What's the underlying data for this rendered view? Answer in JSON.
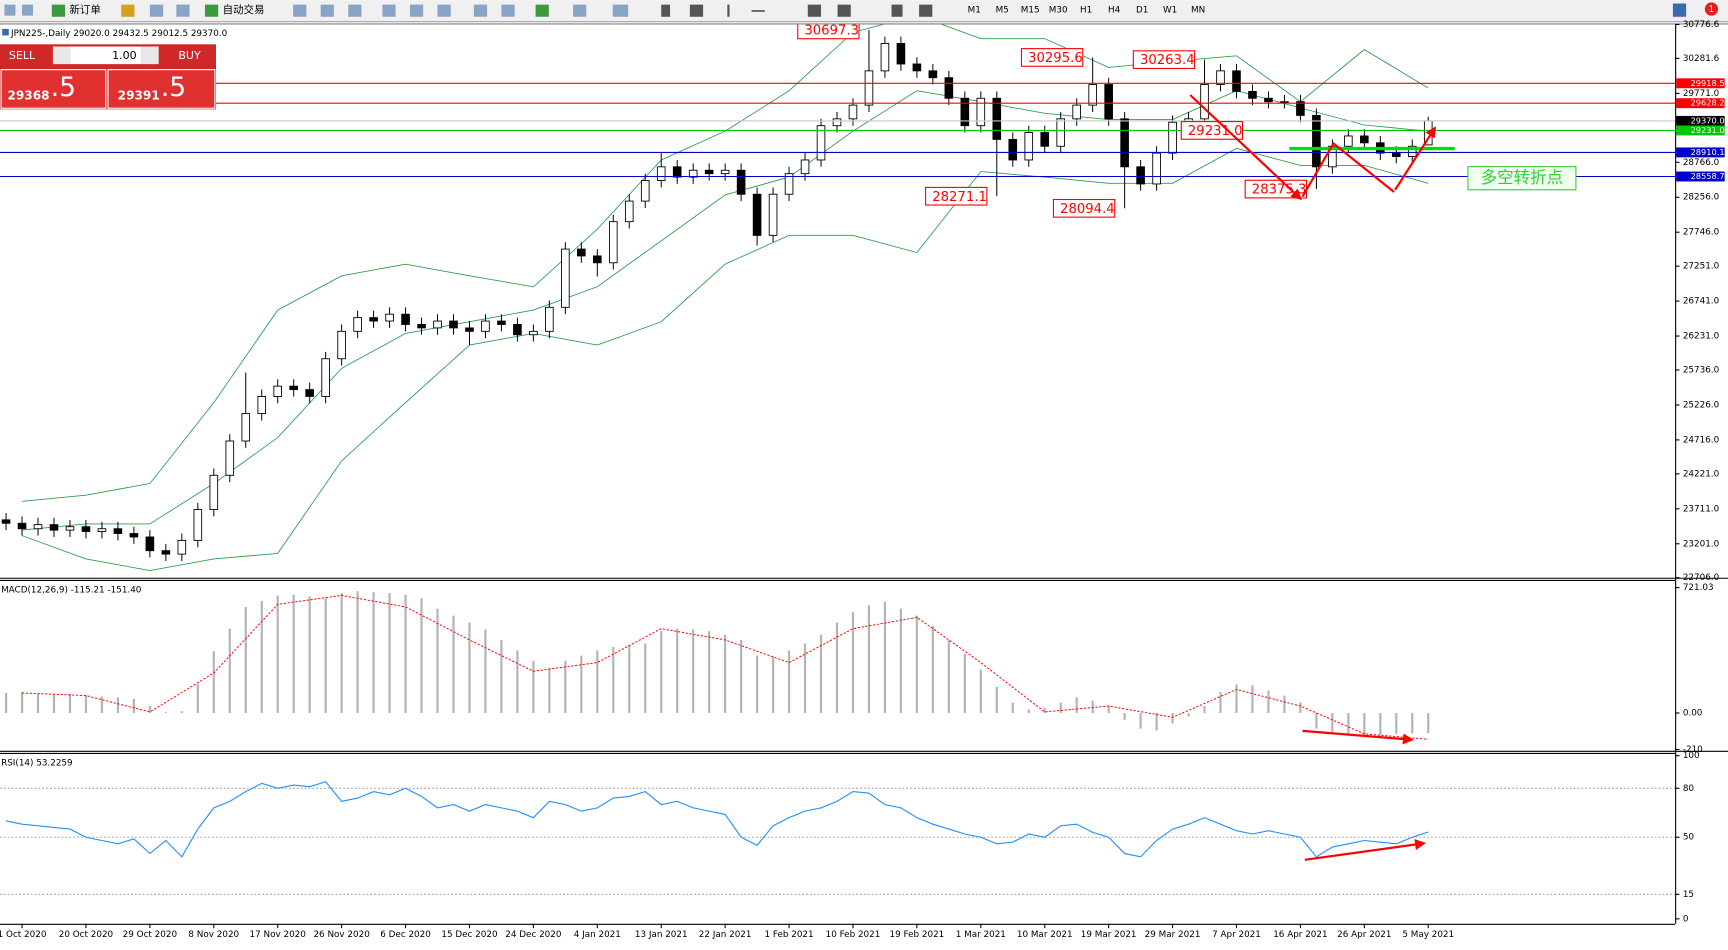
{
  "toolbar": {
    "new_order": "新订单",
    "auto_trading": "自动交易",
    "timeframes": [
      "M1",
      "M5",
      "M15",
      "M30",
      "H1",
      "H4",
      "D1",
      "W1",
      "MN"
    ],
    "badge": "1"
  },
  "trade_panel": {
    "sell": "SELL",
    "buy": "BUY",
    "lot": "1.00",
    "sell_main": "29368",
    "sell_frac": ".5",
    "buy_main": "29391",
    "buy_frac": ".5"
  },
  "chart_data": [
    {
      "type": "candlestick",
      "title": "JPN225-,Daily  29020.0 29432.5 29012.5 29370.0",
      "categories": [
        null,
        "1 Oct 2020",
        null,
        null,
        null,
        "20 Oct 2020",
        null,
        null,
        null,
        "29 Oct 2020",
        null,
        null,
        null,
        "8 Nov 2020",
        null,
        null,
        null,
        "17 Nov 2020",
        null,
        null,
        null,
        "26 Nov 2020",
        null,
        null,
        null,
        "6 Dec 2020",
        null,
        null,
        null,
        "15 Dec 2020",
        null,
        null,
        null,
        "24 Dec 2020",
        null,
        null,
        null,
        "4 Jan 2021",
        null,
        null,
        null,
        "13 Jan 2021",
        null,
        null,
        null,
        "22 Jan 2021",
        null,
        null,
        null,
        "1 Feb 2021",
        null,
        null,
        null,
        "10 Feb 2021",
        null,
        null,
        null,
        "19 Feb 2021",
        null,
        null,
        null,
        "1 Mar 2021",
        null,
        null,
        null,
        "10 Mar 2021",
        null,
        null,
        null,
        "19 Mar 2021",
        null,
        null,
        null,
        "29 Mar 2021",
        null,
        null,
        null,
        "7 Apr 2021",
        null,
        null,
        null,
        "16 Apr 2021",
        null,
        null,
        null,
        "26 Apr 2021",
        null,
        null,
        null,
        "5 May 2021"
      ],
      "open": [
        23550,
        23500,
        23420,
        23480,
        23400,
        23450,
        23380,
        23420,
        23350,
        23300,
        23100,
        23050,
        23250,
        23700,
        24200,
        24700,
        25100,
        25350,
        25500,
        25450,
        25350,
        25900,
        26300,
        26500,
        26450,
        26550,
        26400,
        26350,
        26450,
        26350,
        26300,
        26450,
        26400,
        26250,
        26300,
        26650,
        27500,
        27400,
        27300,
        27900,
        28200,
        28500,
        28700,
        28550,
        28650,
        28600,
        28650,
        28300,
        27700,
        28300,
        28600,
        28800,
        29300,
        29400,
        29600,
        30100,
        30500,
        30200,
        30100,
        30000,
        29700,
        29300,
        29700,
        29100,
        28800,
        29200,
        29000,
        29400,
        29600,
        29900,
        29400,
        28700,
        28450,
        28900,
        29350,
        29400,
        29900,
        30100,
        29800,
        29700,
        29650,
        29650,
        29450,
        28700,
        29000,
        29150,
        29050,
        28900,
        28850,
        29020
      ],
      "high": [
        23650,
        23600,
        23580,
        23580,
        23550,
        23550,
        23520,
        23520,
        23450,
        23400,
        23200,
        23350,
        23800,
        24300,
        24800,
        25700,
        25450,
        25600,
        25600,
        25550,
        26000,
        26400,
        26600,
        26600,
        26650,
        26650,
        26500,
        26550,
        26550,
        26450,
        26550,
        26550,
        26500,
        26400,
        26750,
        27600,
        27600,
        27500,
        28000,
        28300,
        28600,
        28900,
        28800,
        28750,
        28750,
        28750,
        28750,
        28400,
        28400,
        28700,
        28900,
        29400,
        29500,
        29700,
        30697.3,
        30600,
        30600,
        30300,
        30200,
        30100,
        29800,
        29800,
        29800,
        29200,
        29300,
        29300,
        29500,
        29700,
        30295.6,
        30000,
        29500,
        28800,
        29000,
        29450,
        29500,
        30263.4,
        30200,
        30200,
        29900,
        29800,
        29750,
        29750,
        29550,
        29100,
        29250,
        29250,
        29150,
        29000,
        29100,
        29432.5
      ],
      "low": [
        23400,
        23320,
        23320,
        23300,
        23300,
        23280,
        23280,
        23250,
        23200,
        23000,
        22950,
        22950,
        23150,
        23600,
        24100,
        24600,
        25000,
        25250,
        25350,
        25250,
        25250,
        25800,
        26200,
        26350,
        26350,
        26300,
        26250,
        26250,
        26250,
        26100,
        26200,
        26300,
        26150,
        26150,
        26200,
        26550,
        27300,
        27100,
        27200,
        27800,
        28100,
        28400,
        28450,
        28450,
        28500,
        28500,
        28200,
        27550,
        27600,
        28200,
        28500,
        28700,
        29200,
        29300,
        29500,
        30000,
        30100,
        30000,
        29900,
        29600,
        29200,
        29200,
        28271.1,
        28700,
        28700,
        28900,
        28900,
        29300,
        29500,
        29300,
        28094.4,
        28350,
        28350,
        28800,
        29250,
        29300,
        29800,
        29700,
        29600,
        29550,
        29550,
        29350,
        28375.3,
        28600,
        28900,
        28950,
        28800,
        28750,
        28750,
        29012.5
      ],
      "close": [
        23500,
        23420,
        23480,
        23400,
        23450,
        23380,
        23420,
        23350,
        23300,
        23100,
        23050,
        23250,
        23700,
        24200,
        24700,
        25100,
        25350,
        25500,
        25450,
        25350,
        25900,
        26300,
        26500,
        26450,
        26550,
        26400,
        26350,
        26450,
        26350,
        26300,
        26450,
        26400,
        26250,
        26300,
        26650,
        27500,
        27400,
        27300,
        27900,
        28200,
        28500,
        28700,
        28550,
        28650,
        28600,
        28650,
        28300,
        27700,
        28300,
        28600,
        28800,
        29300,
        29400,
        29600,
        30100,
        30500,
        30200,
        30100,
        30000,
        29700,
        29300,
        29700,
        29100,
        28800,
        29200,
        29000,
        29400,
        29600,
        29900,
        29400,
        28700,
        28450,
        28900,
        29350,
        29400,
        29900,
        30100,
        29800,
        29700,
        29650,
        29650,
        29450,
        28700,
        29000,
        29150,
        29050,
        28900,
        28850,
        29000,
        29370
      ],
      "up_color": "#ffffff",
      "down_color": "#000000",
      "line_color": "#000000",
      "bands": {
        "color": "#2e9e4f",
        "x": [
          1,
          5,
          9,
          13,
          17,
          21,
          25,
          29,
          33,
          37,
          41,
          45,
          49,
          53,
          57,
          61,
          65,
          69,
          73,
          77,
          81,
          85,
          89
        ],
        "upper": [
          23820,
          23910,
          24080,
          25260,
          26610,
          27110,
          27280,
          27110,
          26950,
          27790,
          28800,
          29220,
          29810,
          30660,
          30910,
          30570,
          30570,
          30150,
          30240,
          30320,
          29650,
          30410,
          29850
        ],
        "middle": [
          23400,
          23490,
          23490,
          24080,
          24750,
          25760,
          26270,
          26440,
          26610,
          26950,
          27620,
          28290,
          28550,
          29220,
          29810,
          29650,
          29480,
          29390,
          29390,
          29810,
          29560,
          29310,
          29220
        ],
        "lower": [
          23320,
          22980,
          22810,
          22980,
          23060,
          24410,
          25260,
          26100,
          26270,
          26100,
          26440,
          27280,
          27700,
          27700,
          27450,
          28630,
          28550,
          28460,
          28460,
          28970,
          28720,
          28720,
          28460
        ]
      },
      "ylim": [
        22706,
        30776.6
      ],
      "yticks": [
        30776.6,
        30281.6,
        {
          "value": 29771,
          "label": "29771.0"
        },
        {
          "value": 28766,
          "label": "28766.0"
        },
        {
          "value": 28256,
          "label": "28256.0"
        },
        {
          "value": 27746,
          "label": "27746.0"
        },
        {
          "value": 27251,
          "label": "27251.0"
        },
        {
          "value": 26741,
          "label": "26741.0"
        },
        {
          "value": 26231,
          "label": "26231.0"
        },
        {
          "value": 25736,
          "label": "25736.0"
        },
        {
          "value": 25226,
          "label": "25226.0"
        },
        {
          "value": 24716,
          "label": "24716.0"
        },
        {
          "value": 24221,
          "label": "24221.0"
        },
        {
          "value": 23711,
          "label": "23711.0"
        },
        {
          "value": 23201,
          "label": "23201.0"
        },
        {
          "value": 22706,
          "label": "22706.0"
        }
      ],
      "hlines": [
        {
          "value": 29918.5,
          "color": "#ff0000"
        },
        {
          "value": 29628.2,
          "color": "#ff0000"
        },
        {
          "value": 29370,
          "label": "29370.0",
          "color": "#000000",
          "line_color": "#c8c8c8"
        },
        {
          "value": 29231,
          "label": "29231.0",
          "color": "#00c800"
        },
        {
          "value": 28910.1,
          "color": "#0000c8"
        },
        {
          "value": 28558.7,
          "color": "#0000c8"
        }
      ],
      "annotations": [
        {
          "value": 30697.3,
          "x": 54
        },
        {
          "value": 28271.1,
          "x": 62
        },
        {
          "value": 30295.6,
          "x": 68
        },
        {
          "value": 28094.4,
          "x": 70
        },
        {
          "value": 30263.4,
          "x": 75
        },
        {
          "value": 29231,
          "label": "29231.0",
          "x": 78
        },
        {
          "value": 28375.3,
          "x": 82
        }
      ],
      "note": "多空转折点"
    },
    {
      "type": "macd",
      "title": "MACD(12,26,9) -115.21 -151.40",
      "color": "#b4b4b4",
      "values": [
        115,
        120,
        110,
        105,
        110,
        100,
        95,
        90,
        80,
        40,
        5,
        10,
        165,
        355,
        485,
        610,
        645,
        676,
        680,
        670,
        660,
        690,
        700,
        695,
        690,
        680,
        660,
        600,
        560,
        520,
        480,
        420,
        360,
        300,
        260,
        300,
        330,
        360,
        380,
        390,
        400,
        470,
        485,
        480,
        470,
        450,
        420,
        330,
        320,
        360,
        400,
        450,
        520,
        580,
        620,
        640,
        600,
        560,
        500,
        420,
        340,
        250,
        150,
        60,
        20,
        30,
        60,
        90,
        70,
        40,
        -40,
        -90,
        -100,
        -60,
        -20,
        40,
        120,
        165,
        160,
        130,
        100,
        60,
        -90,
        -110,
        -120,
        -125,
        -130,
        -120,
        -118,
        -115.21
      ],
      "signal": {
        "color": "#ff0000",
        "x": [
          1,
          5,
          9,
          13,
          17,
          21,
          25,
          29,
          33,
          37,
          41,
          45,
          49,
          53,
          57,
          61,
          65,
          69,
          73,
          77,
          81,
          85,
          89
        ],
        "values": [
          115,
          100,
          6,
          230,
          625,
          676,
          610,
          420,
          240,
          290,
          485,
          420,
          290,
          485,
          550,
          290,
          6,
          40,
          -25,
          135,
          40,
          -120,
          -151.4
        ]
      },
      "ylim": [
        -217,
        759
      ],
      "yticks": [
        721.03,
        {
          "value": 0,
          "label": "0.00"
        },
        -210
      ]
    },
    {
      "type": "line",
      "title": "RSI(14) 53.2259",
      "color": "#1e90ff",
      "values": [
        60,
        58,
        57,
        56,
        55,
        50,
        48,
        46,
        49,
        40,
        48,
        38,
        55,
        68,
        72,
        78,
        83,
        80,
        82,
        81,
        84,
        72,
        74,
        78,
        76,
        80,
        75,
        68,
        70,
        66,
        70,
        68,
        66,
        62,
        72,
        70,
        66,
        68,
        74,
        75,
        78,
        70,
        72,
        68,
        66,
        64,
        50,
        45,
        57,
        62,
        66,
        68,
        72,
        78,
        77,
        70,
        68,
        62,
        58,
        55,
        52,
        50,
        46,
        47,
        52,
        50,
        57,
        58,
        53,
        50,
        40,
        38,
        48,
        55,
        58,
        62,
        58,
        54,
        52,
        54,
        52,
        50,
        38,
        44,
        46,
        48,
        47,
        46,
        50,
        53.2259
      ],
      "ylim": [
        -3,
        101
      ],
      "yticks": [
        100,
        80,
        50,
        15,
        0
      ],
      "levels": [
        80,
        50,
        15
      ]
    }
  ]
}
